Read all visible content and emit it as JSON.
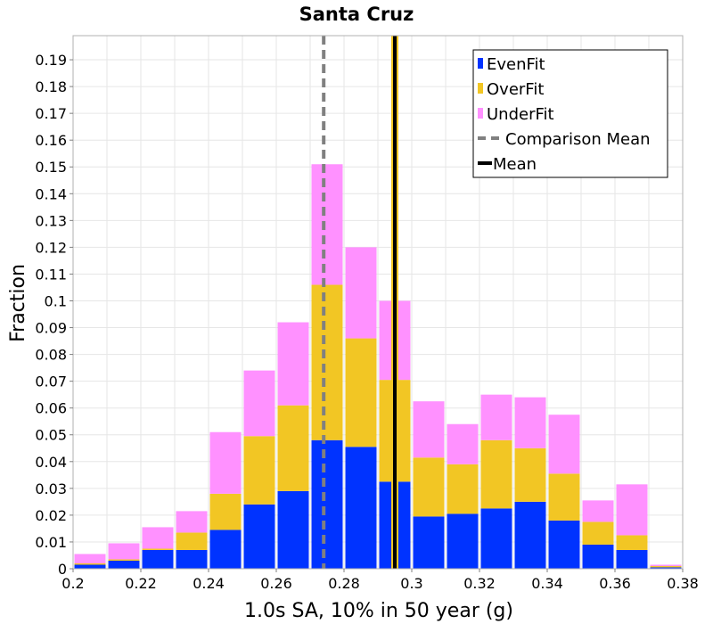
{
  "chart_data": {
    "type": "bar",
    "stacked": true,
    "title": "Santa Cruz",
    "xlabel": "1.0s SA, 10% in 50 year (g)",
    "ylabel": "Fraction",
    "xlim": [
      0.2,
      0.38
    ],
    "ylim": [
      0,
      0.199
    ],
    "x_ticks": [
      "0.2",
      "0.22",
      "0.24",
      "0.26",
      "0.28",
      "0.3",
      "0.32",
      "0.34",
      "0.36",
      "0.38"
    ],
    "y_ticks": [
      "0",
      "0.01",
      "0.02",
      "0.03",
      "0.04",
      "0.05",
      "0.06",
      "0.07",
      "0.08",
      "0.09",
      "0.1",
      "0.11",
      "0.12",
      "0.13",
      "0.14",
      "0.15",
      "0.16",
      "0.17",
      "0.18",
      "0.19"
    ],
    "bin_width": 0.01,
    "bin_starts": [
      0.2,
      0.21,
      0.22,
      0.23,
      0.24,
      0.25,
      0.26,
      0.27,
      0.28,
      0.29,
      0.3,
      0.31,
      0.32,
      0.33,
      0.34,
      0.35,
      0.36,
      0.37
    ],
    "series": [
      {
        "name": "EvenFit",
        "color": "#0033ff",
        "values": [
          0.0015,
          0.003,
          0.007,
          0.007,
          0.0145,
          0.024,
          0.029,
          0.048,
          0.0455,
          0.0325,
          0.0195,
          0.0205,
          0.0225,
          0.025,
          0.018,
          0.009,
          0.007,
          0.0005
        ]
      },
      {
        "name": "OverFit",
        "color": "#f2c624",
        "values": [
          0.0005,
          0.0005,
          0.0005,
          0.0065,
          0.0135,
          0.0255,
          0.032,
          0.058,
          0.0405,
          0.038,
          0.022,
          0.0185,
          0.0255,
          0.02,
          0.0175,
          0.0085,
          0.0055,
          0.0005
        ]
      },
      {
        "name": "UnderFit",
        "color": "#ff91ff",
        "values": [
          0.0035,
          0.006,
          0.008,
          0.008,
          0.023,
          0.0245,
          0.031,
          0.045,
          0.034,
          0.0295,
          0.021,
          0.015,
          0.017,
          0.019,
          0.022,
          0.008,
          0.019,
          0.0005
        ]
      }
    ],
    "lines": [
      {
        "name": "Comparison Mean",
        "x": 0.274,
        "style": "dashed",
        "color": "#808080"
      },
      {
        "name": "Mean",
        "x": 0.295,
        "style": "solid",
        "color": "#000000"
      }
    ],
    "legend_position": "top-right",
    "grid": true
  }
}
